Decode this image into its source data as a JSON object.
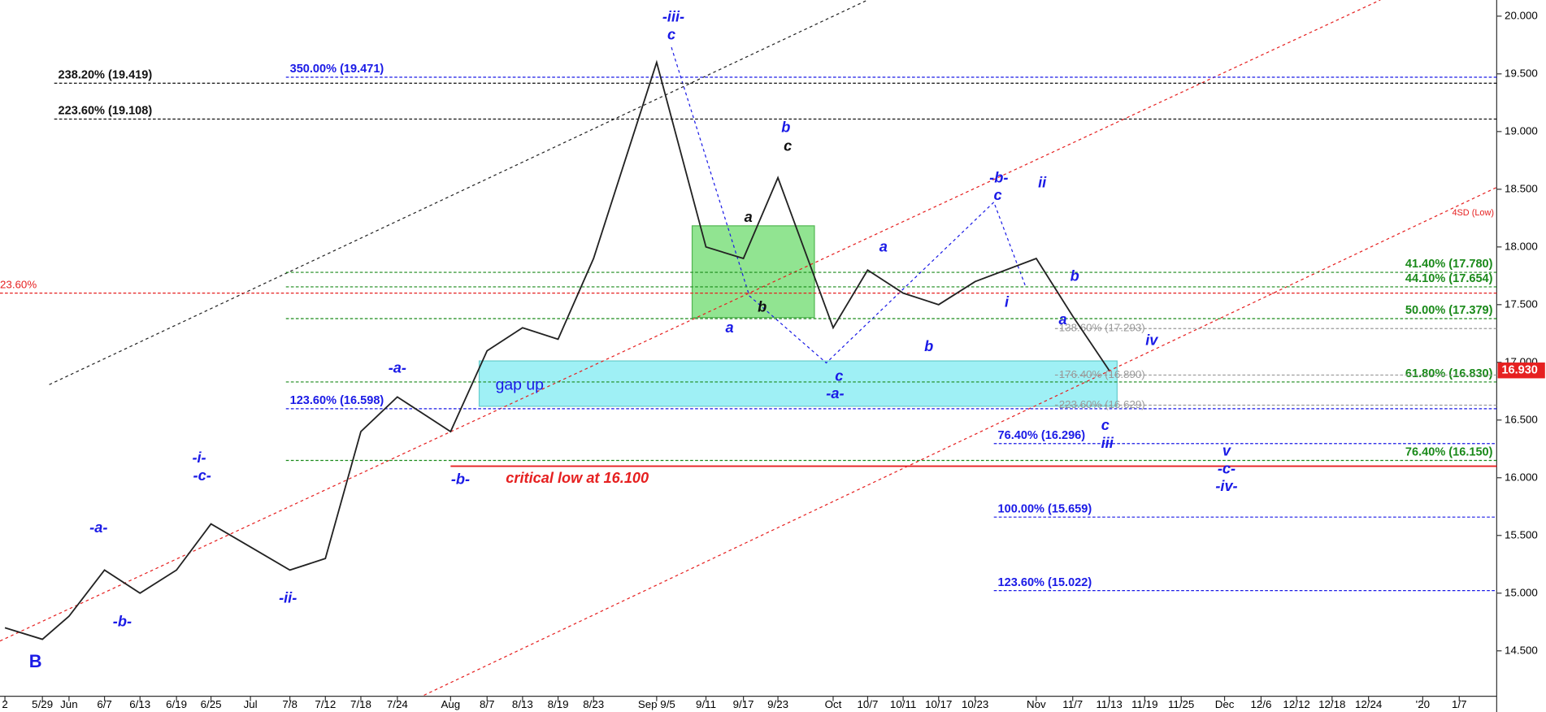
{
  "chart_data": {
    "type": "line",
    "categories": [
      "2",
      "5/29",
      "Jun",
      "6/7",
      "6/13",
      "6/19",
      "6/25",
      "Jul",
      "7/8",
      "7/12",
      "7/18",
      "7/24",
      "Aug",
      "8/7",
      "8/13",
      "8/19",
      "8/23",
      "Sep 9/5",
      "9/11",
      "9/17",
      "9/23",
      "Oct",
      "10/7",
      "10/11",
      "10/17",
      "10/23",
      "Nov",
      "11/7",
      "11/13",
      "11/19",
      "11/25",
      "Dec",
      "12/6",
      "12/12",
      "12/18",
      "12/24",
      "'20",
      "1/7"
    ],
    "series": [
      {
        "name": "Price",
        "color": "#222222",
        "values": [
          14.7,
          14.6,
          14.8,
          15.2,
          15.0,
          15.2,
          15.6,
          15.4,
          15.2,
          15.3,
          16.4,
          16.7,
          16.4,
          17.1,
          17.3,
          17.2,
          17.9,
          19.6,
          18.0,
          17.9,
          18.6,
          17.3,
          17.8,
          17.6,
          17.5,
          17.7,
          17.9,
          17.4,
          16.93,
          null,
          null,
          null,
          null,
          null,
          null,
          null,
          null,
          null
        ]
      }
    ],
    "last_price": {
      "value": 16.93,
      "label": "16.930"
    },
    "ylim": [
      13.97,
      20.14
    ],
    "yticks": [
      {
        "value": 14.5,
        "label": "14.500"
      },
      {
        "value": 15,
        "label": "15.000"
      },
      {
        "value": 15.5,
        "label": "15.500"
      },
      {
        "value": 16,
        "label": "16.000"
      },
      {
        "value": 16.5,
        "label": "16.500"
      },
      {
        "value": 17,
        "label": "17.000"
      },
      {
        "value": 17.5,
        "label": "17.500"
      },
      {
        "value": 18,
        "label": "18.000"
      },
      {
        "value": 18.5,
        "label": "18.500"
      },
      {
        "value": 19,
        "label": "19.000"
      },
      {
        "value": 19.5,
        "label": "19.500"
      },
      {
        "value": 20,
        "label": "20.000"
      }
    ],
    "levels": [
      {
        "value": 19.419,
        "label": "238.20% (19.419)",
        "color": "#111111"
      },
      {
        "value": 19.108,
        "label": "223.60% (19.108)",
        "color": "#111111"
      },
      {
        "value": 19.471,
        "label": "350.00% (19.471)",
        "color": "#1a1ae6"
      },
      {
        "value": 16.598,
        "label": "123.60% (16.598)",
        "color": "#1a1ae6"
      },
      {
        "value": 17.78,
        "label": "41.40% (17.780)",
        "color": "#1a8a1a"
      },
      {
        "value": 17.654,
        "label": "44.10% (17.654)",
        "color": "#1a8a1a"
      },
      {
        "value": 17.379,
        "label": "50.00% (17.379)",
        "color": "#1a8a1a"
      },
      {
        "value": 16.83,
        "label": "61.80% (16.830)",
        "color": "#1a8a1a"
      },
      {
        "value": 16.15,
        "label": "76.40% (16.150)",
        "color": "#1a8a1a"
      },
      {
        "value": 16.296,
        "label": "76.40% (16.296)",
        "color": "#1a1ae6"
      },
      {
        "value": 15.659,
        "label": "100.00% (15.659)",
        "color": "#1a1ae6"
      },
      {
        "value": 15.022,
        "label": "123.60% (15.022)",
        "color": "#1a1ae6"
      },
      {
        "value": 17.293,
        "label": "138.60% (17.293)",
        "color": "#999999"
      },
      {
        "value": 16.89,
        "label": "176.40% (16.890)",
        "color": "#999999"
      },
      {
        "value": 16.629,
        "label": "223.60% (16.629)",
        "color": "#999999"
      },
      {
        "value": 17.6,
        "label": "23.60%",
        "color": "#e62020"
      },
      {
        "value": 16.1,
        "label": "critical low at 16.100",
        "color": "#e62020"
      }
    ],
    "annotations": [
      "B",
      "-a-",
      "-b-",
      "-i-",
      "-c-",
      "-ii-",
      "-a-",
      "-b-",
      "-iii-",
      "c",
      "b",
      "c",
      "a",
      "a",
      "b",
      "a",
      "c",
      "-a-",
      "b",
      "-b-",
      "c",
      "ii",
      "i",
      "b",
      "a",
      "iv",
      "c",
      "iii",
      "v",
      "-c-",
      "-iv-",
      "gap up",
      "4SD (Low)"
    ]
  }
}
